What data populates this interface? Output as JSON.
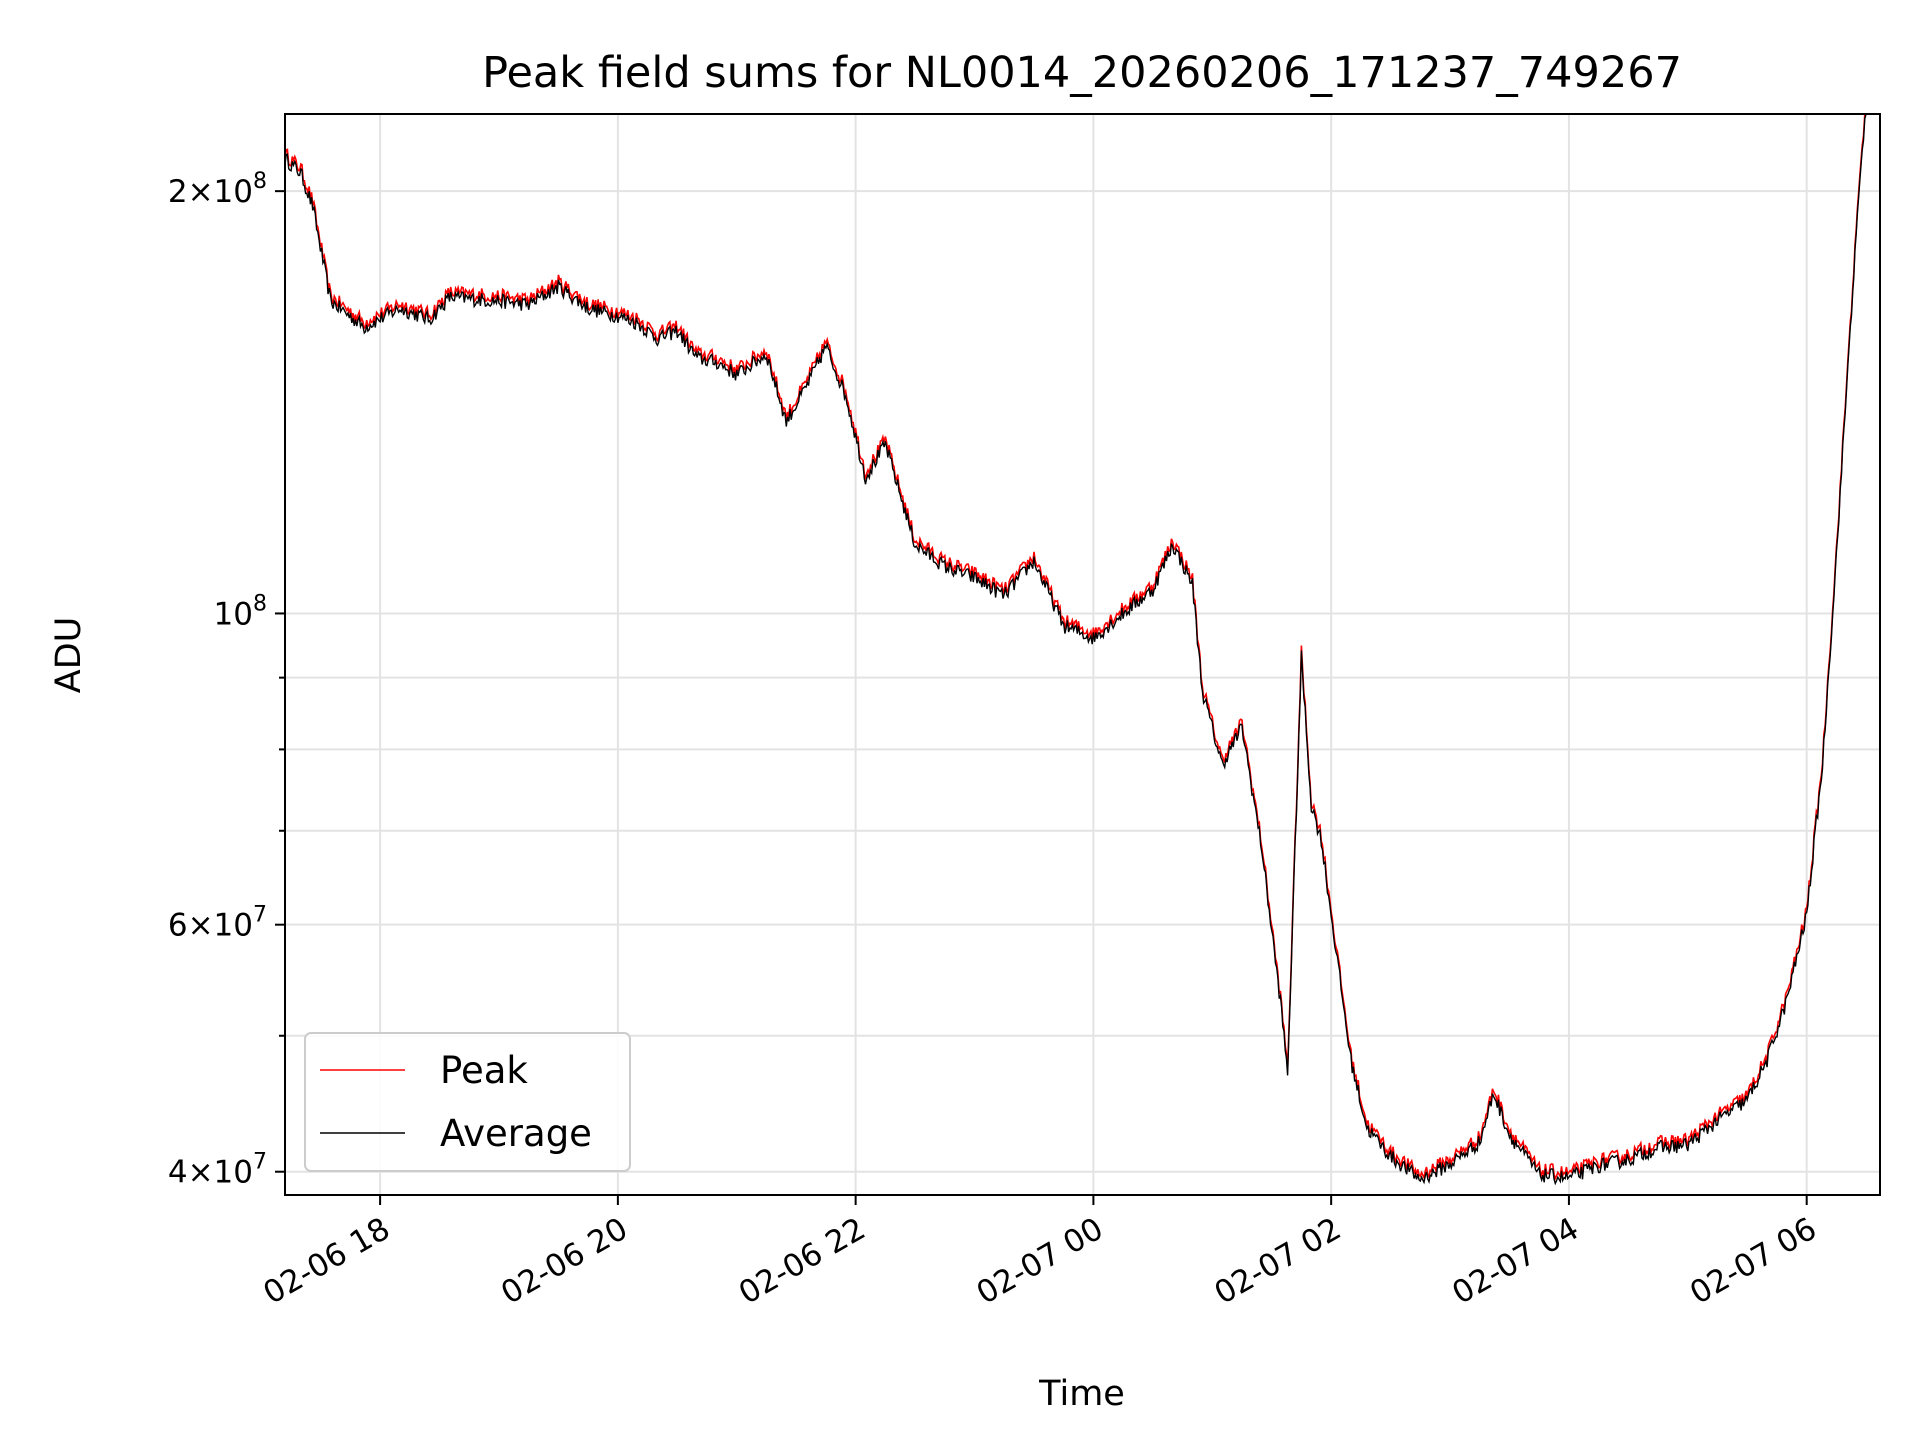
{
  "chart_data": {
    "type": "line",
    "title": "Peak field sums for NL0014_20260206_171237_749267",
    "xlabel": "Time",
    "ylabel": "ADU",
    "y_scale": "log",
    "ylim": [
      38500000,
      227000000
    ],
    "xlim": [
      "02-06 17:12",
      "02-07 06:37"
    ],
    "grid": true,
    "legend_position": "lower left",
    "x_ticks": [
      "02-06 18",
      "02-06 20",
      "02-06 22",
      "02-07 00",
      "02-07 02",
      "02-07 04",
      "02-07 06"
    ],
    "y_tick_labels": [
      {
        "value": 200000000,
        "mant": "2",
        "base": "10",
        "exp": "8"
      },
      {
        "value": 100000000,
        "mant": "",
        "base": "10",
        "exp": "8"
      },
      {
        "value": 60000000,
        "mant": "6",
        "base": "10",
        "exp": "7"
      },
      {
        "value": 40000000,
        "mant": "4",
        "base": "10",
        "exp": "7"
      }
    ],
    "y_minor_ticks": [
      50000000,
      70000000,
      80000000,
      90000000
    ],
    "series": [
      {
        "name": "Peak",
        "color": "#ff0000",
        "offset": 1.008
      },
      {
        "name": "Average",
        "color": "#000000",
        "points": [
          [
            "02-06 17:12",
            211000000
          ],
          [
            "02-06 17:20",
            206000000
          ],
          [
            "02-06 17:26",
            195000000
          ],
          [
            "02-06 17:35",
            167000000
          ],
          [
            "02-06 17:52",
            160000000
          ],
          [
            "02-06 18:10",
            165000000
          ],
          [
            "02-06 18:25",
            162000000
          ],
          [
            "02-06 18:35",
            168000000
          ],
          [
            "02-06 19:00",
            167000000
          ],
          [
            "02-06 19:15",
            166000000
          ],
          [
            "02-06 19:30",
            171000000
          ],
          [
            "02-06 19:45",
            165000000
          ],
          [
            "02-06 20:00",
            163000000
          ],
          [
            "02-06 20:10",
            161000000
          ],
          [
            "02-06 20:20",
            157000000
          ],
          [
            "02-06 20:30",
            159000000
          ],
          [
            "02-06 20:40",
            152000000
          ],
          [
            "02-06 20:50",
            151000000
          ],
          [
            "02-06 21:00",
            148000000
          ],
          [
            "02-06 21:15",
            153000000
          ],
          [
            "02-06 21:25",
            137000000
          ],
          [
            "02-06 21:35",
            145000000
          ],
          [
            "02-06 21:45",
            155000000
          ],
          [
            "02-06 21:55",
            143000000
          ],
          [
            "02-06 22:05",
            125000000
          ],
          [
            "02-06 22:15",
            132000000
          ],
          [
            "02-06 22:30",
            112000000
          ],
          [
            "02-06 22:45",
            108000000
          ],
          [
            "02-06 23:00",
            106000000
          ],
          [
            "02-06 23:15",
            103000000
          ],
          [
            "02-06 23:30",
            109000000
          ],
          [
            "02-06 23:45",
            98000000
          ],
          [
            "02-07 00:00",
            96000000
          ],
          [
            "02-07 00:15",
            100000000
          ],
          [
            "02-07 00:30",
            104000000
          ],
          [
            "02-07 00:40",
            112000000
          ],
          [
            "02-07 00:50",
            105000000
          ],
          [
            "02-07 00:55",
            88000000
          ],
          [
            "02-07 01:05",
            78000000
          ],
          [
            "02-07 01:15",
            83000000
          ],
          [
            "02-07 01:25",
            68000000
          ],
          [
            "02-07 01:35",
            52000000
          ],
          [
            "02-07 01:38",
            47000000
          ],
          [
            "02-07 01:45",
            93000000
          ],
          [
            "02-07 01:50",
            73000000
          ],
          [
            "02-07 01:55",
            69000000
          ],
          [
            "02-07 02:00",
            61000000
          ],
          [
            "02-07 02:10",
            48000000
          ],
          [
            "02-07 02:18",
            43000000
          ],
          [
            "02-07 02:30",
            41000000
          ],
          [
            "02-07 02:45",
            39500000
          ],
          [
            "02-07 03:00",
            40500000
          ],
          [
            "02-07 03:15",
            42000000
          ],
          [
            "02-07 03:22",
            45500000
          ],
          [
            "02-07 03:30",
            42500000
          ],
          [
            "02-07 03:45",
            39800000
          ],
          [
            "02-07 04:00",
            39600000
          ],
          [
            "02-07 04:15",
            40400000
          ],
          [
            "02-07 04:30",
            40800000
          ],
          [
            "02-07 04:45",
            41600000
          ],
          [
            "02-07 05:00",
            41800000
          ],
          [
            "02-07 05:15",
            43500000
          ],
          [
            "02-07 05:30",
            45000000
          ],
          [
            "02-07 05:40",
            48000000
          ],
          [
            "02-07 05:50",
            53000000
          ],
          [
            "02-07 06:00",
            61000000
          ],
          [
            "02-07 06:08",
            78000000
          ],
          [
            "02-07 06:15",
            110000000
          ],
          [
            "02-07 06:22",
            160000000
          ],
          [
            "02-07 06:28",
            215000000
          ],
          [
            "02-07 06:30",
            227000000
          ]
        ]
      }
    ]
  }
}
